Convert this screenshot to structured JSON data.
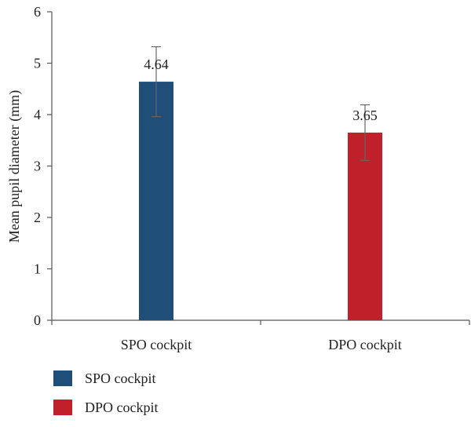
{
  "chart_data": {
    "type": "bar",
    "categories": [
      "SPO cockpit",
      "DPO cockpit"
    ],
    "values": [
      4.64,
      3.65
    ],
    "error_high": [
      5.32,
      4.19
    ],
    "error_low": [
      3.96,
      3.11
    ],
    "data_labels": [
      "4.64",
      "3.65"
    ],
    "colors": [
      "#1f4e79",
      "#c0202a"
    ],
    "ylabel": "Mean pupil diameter (mm)",
    "xlabel": "",
    "ylim": [
      0,
      6
    ],
    "yticks": [
      "0",
      "1",
      "2",
      "3",
      "4",
      "5",
      "6"
    ],
    "grid": false,
    "legend": {
      "placement": "bottom-left",
      "entries": [
        "SPO cockpit",
        "DPO cockpit"
      ]
    }
  }
}
